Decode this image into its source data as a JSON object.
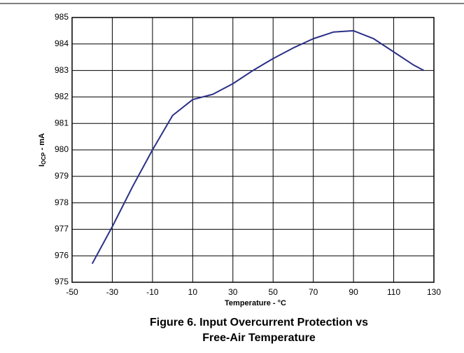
{
  "chart_data": {
    "type": "line",
    "x_label": "Temperature - °C",
    "y_label": [
      "I",
      "OCP",
      " - mA"
    ],
    "caption": "Figure 6. Input Overcurrent Protection vs Free-Air Temperature",
    "x": [
      -40,
      -30,
      -20,
      -10,
      0,
      10,
      20,
      30,
      40,
      50,
      60,
      70,
      80,
      90,
      100,
      110,
      120,
      125
    ],
    "series": [
      {
        "color": "#2b3087",
        "values": [
          975.7,
          977.1,
          978.6,
          980.0,
          981.3,
          981.9,
          982.1,
          982.5,
          983.0,
          983.45,
          983.85,
          984.2,
          984.45,
          984.5,
          984.2,
          983.7,
          983.2,
          983.0
        ]
      }
    ],
    "xlim": [
      -50,
      130
    ],
    "xticks": [
      -50,
      -30,
      -10,
      10,
      30,
      50,
      70,
      90,
      110,
      130
    ],
    "ylim": [
      975,
      985
    ],
    "yticks": [
      975,
      976,
      977,
      978,
      979,
      980,
      981,
      982,
      983,
      984,
      985
    ],
    "grid": true
  }
}
